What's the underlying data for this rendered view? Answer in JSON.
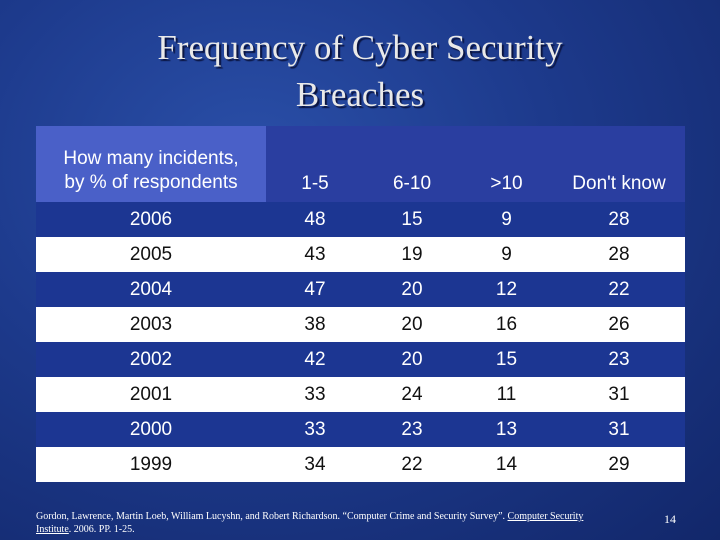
{
  "slide": {
    "title_line1": "Frequency of Cyber Security",
    "title_line2": "Breaches",
    "page_number": "14"
  },
  "table": {
    "header_line1": "How many incidents,",
    "header_line2": "by % of respondents",
    "columns": [
      "1-5",
      "6-10",
      ">10",
      "Don't know"
    ],
    "rows": [
      {
        "year": "2006",
        "values": [
          "48",
          "15",
          "9",
          "28"
        ]
      },
      {
        "year": "2005",
        "values": [
          "43",
          "19",
          "9",
          "28"
        ]
      },
      {
        "year": "2004",
        "values": [
          "47",
          "20",
          "12",
          "22"
        ]
      },
      {
        "year": "2003",
        "values": [
          "38",
          "20",
          "16",
          "26"
        ]
      },
      {
        "year": "2002",
        "values": [
          "42",
          "20",
          "15",
          "23"
        ]
      },
      {
        "year": "2001",
        "values": [
          "33",
          "24",
          "11",
          "31"
        ]
      },
      {
        "year": "2000",
        "values": [
          "33",
          "23",
          "13",
          "31"
        ]
      },
      {
        "year": "1999",
        "values": [
          "34",
          "22",
          "14",
          "29"
        ]
      }
    ]
  },
  "footer": {
    "citation_text": "Gordon, Lawrence, Martin Loeb, William Lucyshn, and Robert Richardson. “Computer Crime and Security Survey”. ",
    "link_part1": "Computer Security",
    "link_part2": "Institute",
    "citation_end": ". 2006. PP. 1-25."
  },
  "colors": {
    "background": "#1d3a8c",
    "header_row": "#2a3ea0",
    "header_first_cell": "#4a60c8",
    "dark_row": "#1c3692",
    "light_row": "#ffffff"
  }
}
